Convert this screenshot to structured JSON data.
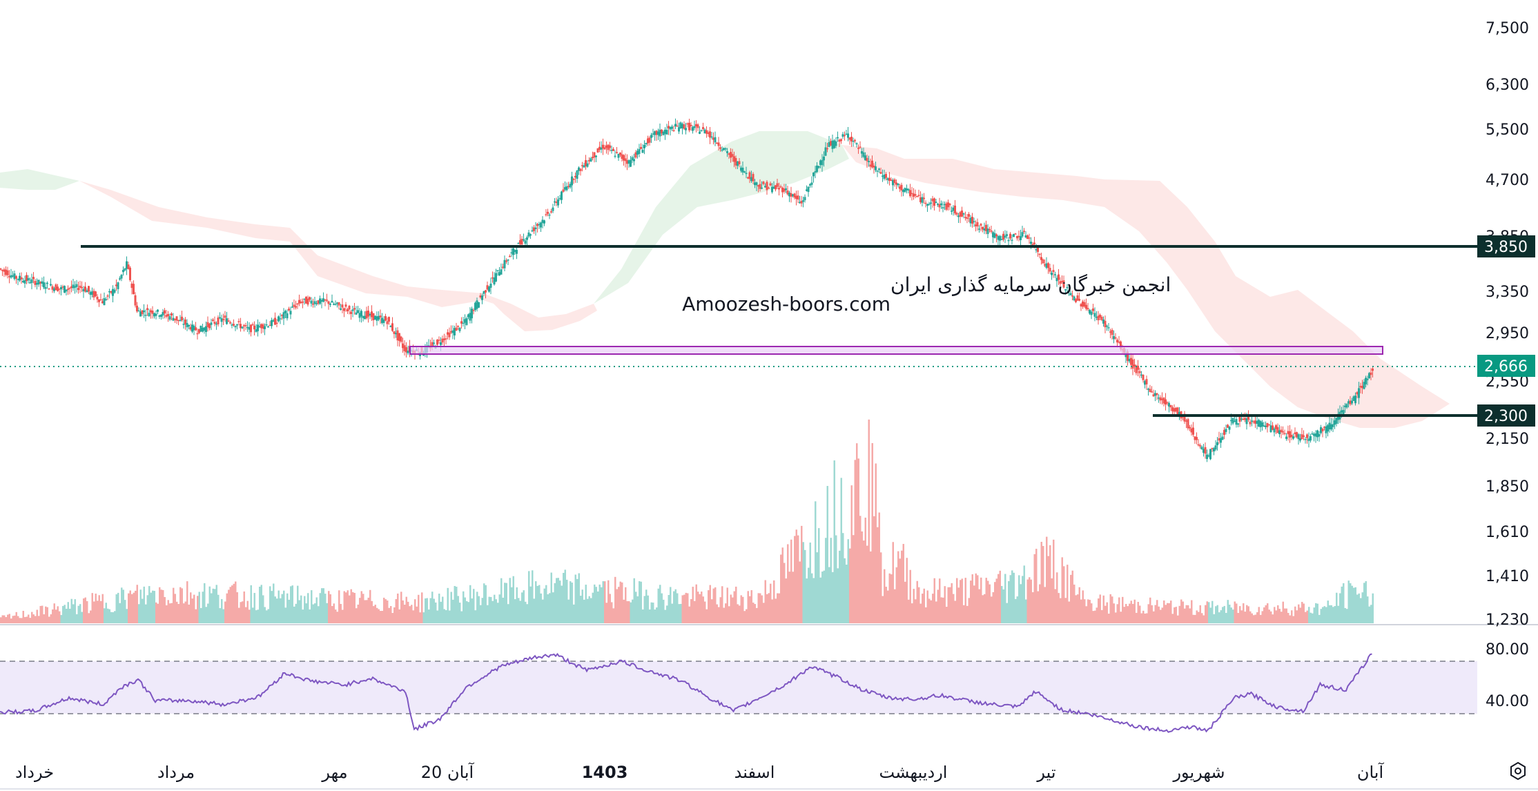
{
  "watermark": {
    "line1": "انجمن خبرگان سرمایه گذاری ایران",
    "line2": "Amoozesh-boors.com"
  },
  "price_axis": {
    "ticks": [
      "7,500",
      "6,300",
      "5,500",
      "4,700",
      "3,850",
      "3,350",
      "2,950",
      "2,550",
      "2,150",
      "1,850",
      "1,610",
      "1,410",
      "1,230"
    ],
    "tick_values": [
      7500,
      6300,
      5500,
      4700,
      3850,
      3350,
      2950,
      2550,
      2150,
      1850,
      1610,
      1410,
      1230
    ],
    "scale": "log"
  },
  "rsi_axis": {
    "ticks": [
      "80.00",
      "40.00"
    ],
    "upper_band": 70,
    "lower_band": 30
  },
  "time_axis": {
    "labels": [
      "خرداد",
      "مرداد",
      "مهر",
      "20 آبان",
      "1403",
      "اسفند",
      "اردیبهشت",
      "تیر",
      "شهریور",
      "آبان"
    ],
    "bold_label": "1403"
  },
  "tags": {
    "level_high": "3,850",
    "last_price": "2,666",
    "level_low": "2,300"
  },
  "colors": {
    "up": "#26a69a",
    "down": "#ef5350",
    "level_line": "#0c2f2d",
    "zone_fill": "#e9cff7",
    "zone_border": "#9c27b0",
    "rsi_line": "#7e57c2",
    "rsi_band": "#efeafa",
    "cloud_bull": "#e3f3e6",
    "cloud_bear": "#fde4e3",
    "last_price": "#089981"
  },
  "chart_data": {
    "type": "candlestick",
    "title": "",
    "y_scale": "log",
    "horizontal_levels": [
      3850,
      2300
    ],
    "zone": {
      "from": 2800,
      "to": 2850
    },
    "last_price": 2666,
    "price_path": [
      {
        "x": 0,
        "p": 3650
      },
      {
        "x": 10,
        "p": 3550
      },
      {
        "x": 22,
        "p": 3500
      },
      {
        "x": 35,
        "p": 3430
      },
      {
        "x": 48,
        "p": 3450
      },
      {
        "x": 60,
        "p": 3300
      },
      {
        "x": 68,
        "p": 3450
      },
      {
        "x": 74,
        "p": 3700
      },
      {
        "x": 80,
        "p": 3200
      },
      {
        "x": 90,
        "p": 3200
      },
      {
        "x": 100,
        "p": 3150
      },
      {
        "x": 115,
        "p": 3020
      },
      {
        "x": 130,
        "p": 3130
      },
      {
        "x": 145,
        "p": 3030
      },
      {
        "x": 160,
        "p": 3100
      },
      {
        "x": 175,
        "p": 3300
      },
      {
        "x": 190,
        "p": 3300
      },
      {
        "x": 205,
        "p": 3200
      },
      {
        "x": 225,
        "p": 3110
      },
      {
        "x": 235,
        "p": 2850
      },
      {
        "x": 245,
        "p": 2830
      },
      {
        "x": 258,
        "p": 2950
      },
      {
        "x": 270,
        "p": 3100
      },
      {
        "x": 285,
        "p": 3500
      },
      {
        "x": 300,
        "p": 3900
      },
      {
        "x": 318,
        "p": 4300
      },
      {
        "x": 335,
        "p": 4900
      },
      {
        "x": 350,
        "p": 5300
      },
      {
        "x": 365,
        "p": 5050
      },
      {
        "x": 380,
        "p": 5500
      },
      {
        "x": 395,
        "p": 5650
      },
      {
        "x": 410,
        "p": 5550
      },
      {
        "x": 425,
        "p": 5100
      },
      {
        "x": 440,
        "p": 4700
      },
      {
        "x": 455,
        "p": 4650
      },
      {
        "x": 465,
        "p": 4450
      },
      {
        "x": 480,
        "p": 5300
      },
      {
        "x": 492,
        "p": 5500
      },
      {
        "x": 505,
        "p": 5000
      },
      {
        "x": 520,
        "p": 4700
      },
      {
        "x": 535,
        "p": 4500
      },
      {
        "x": 550,
        "p": 4400
      },
      {
        "x": 565,
        "p": 4200
      },
      {
        "x": 580,
        "p": 4000
      },
      {
        "x": 595,
        "p": 4050
      },
      {
        "x": 608,
        "p": 3650
      },
      {
        "x": 622,
        "p": 3350
      },
      {
        "x": 640,
        "p": 3100
      },
      {
        "x": 655,
        "p": 2750
      },
      {
        "x": 668,
        "p": 2500
      },
      {
        "x": 685,
        "p": 2330
      },
      {
        "x": 700,
        "p": 2050
      },
      {
        "x": 715,
        "p": 2300
      },
      {
        "x": 730,
        "p": 2280
      },
      {
        "x": 745,
        "p": 2200
      },
      {
        "x": 758,
        "p": 2180
      },
      {
        "x": 770,
        "p": 2250
      },
      {
        "x": 785,
        "p": 2450
      },
      {
        "x": 795,
        "p": 2660
      }
    ],
    "volume": [
      {
        "x": 0,
        "v": 1
      },
      {
        "x": 92,
        "v": 6
      },
      {
        "x": 240,
        "v": 4
      },
      {
        "x": 296,
        "v": 6
      },
      {
        "x": 310,
        "v": 7
      },
      {
        "x": 330,
        "v": 7
      },
      {
        "x": 348,
        "v": 6
      },
      {
        "x": 362,
        "v": 6
      },
      {
        "x": 392,
        "v": 5
      },
      {
        "x": 440,
        "v": 5
      },
      {
        "x": 505,
        "v": 30
      },
      {
        "x": 508,
        "v": 16
      },
      {
        "x": 512,
        "v": 9
      },
      {
        "x": 520,
        "v": 12
      },
      {
        "x": 532,
        "v": 6
      },
      {
        "x": 549,
        "v": 6
      },
      {
        "x": 590,
        "v": 8
      },
      {
        "x": 608,
        "v": 13
      },
      {
        "x": 628,
        "v": 4
      },
      {
        "x": 688,
        "v": 3
      },
      {
        "x": 770,
        "v": 3
      },
      {
        "x": 776,
        "v": 5
      },
      {
        "x": 785,
        "v": 6
      }
    ],
    "rsi": [
      {
        "x": 0,
        "r": 31
      },
      {
        "x": 20,
        "r": 32
      },
      {
        "x": 40,
        "r": 42
      },
      {
        "x": 60,
        "r": 37
      },
      {
        "x": 70,
        "r": 50
      },
      {
        "x": 80,
        "r": 56
      },
      {
        "x": 90,
        "r": 40
      },
      {
        "x": 110,
        "r": 40
      },
      {
        "x": 130,
        "r": 37
      },
      {
        "x": 150,
        "r": 43
      },
      {
        "x": 165,
        "r": 61
      },
      {
        "x": 180,
        "r": 55
      },
      {
        "x": 200,
        "r": 52
      },
      {
        "x": 215,
        "r": 57
      },
      {
        "x": 235,
        "r": 47
      },
      {
        "x": 240,
        "r": 18
      },
      {
        "x": 255,
        "r": 26
      },
      {
        "x": 270,
        "r": 50
      },
      {
        "x": 290,
        "r": 66
      },
      {
        "x": 310,
        "r": 73
      },
      {
        "x": 322,
        "r": 75
      },
      {
        "x": 340,
        "r": 63
      },
      {
        "x": 360,
        "r": 70
      },
      {
        "x": 375,
        "r": 63
      },
      {
        "x": 395,
        "r": 55
      },
      {
        "x": 410,
        "r": 43
      },
      {
        "x": 425,
        "r": 32
      },
      {
        "x": 440,
        "r": 42
      },
      {
        "x": 455,
        "r": 52
      },
      {
        "x": 470,
        "r": 66
      },
      {
        "x": 485,
        "r": 58
      },
      {
        "x": 500,
        "r": 48
      },
      {
        "x": 515,
        "r": 42
      },
      {
        "x": 530,
        "r": 41
      },
      {
        "x": 545,
        "r": 44
      },
      {
        "x": 560,
        "r": 40
      },
      {
        "x": 575,
        "r": 37
      },
      {
        "x": 590,
        "r": 35
      },
      {
        "x": 600,
        "r": 47
      },
      {
        "x": 615,
        "r": 33
      },
      {
        "x": 630,
        "r": 30
      },
      {
        "x": 645,
        "r": 25
      },
      {
        "x": 660,
        "r": 20
      },
      {
        "x": 675,
        "r": 17
      },
      {
        "x": 690,
        "r": 20
      },
      {
        "x": 700,
        "r": 17
      },
      {
        "x": 715,
        "r": 42
      },
      {
        "x": 725,
        "r": 45
      },
      {
        "x": 740,
        "r": 35
      },
      {
        "x": 755,
        "r": 32
      },
      {
        "x": 765,
        "r": 52
      },
      {
        "x": 780,
        "r": 48
      },
      {
        "x": 795,
        "r": 76
      }
    ]
  }
}
